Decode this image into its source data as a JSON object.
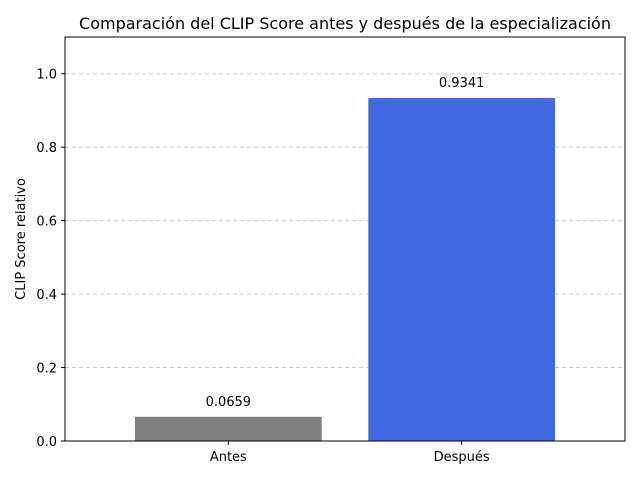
{
  "chart_data": {
    "type": "bar",
    "title": "Comparación del CLIP Score antes y después de la especialización",
    "xlabel": "",
    "ylabel": "CLIP Score relativo",
    "categories": [
      "Antes",
      "Después"
    ],
    "values": [
      0.0659,
      0.9341
    ],
    "value_labels": [
      "0.0659",
      "0.9341"
    ],
    "colors": [
      "#808080",
      "#4169e1"
    ],
    "ylim": [
      0,
      1.1
    ],
    "yticks": [
      0.0,
      0.2,
      0.4,
      0.6,
      0.8,
      1.0
    ],
    "ytick_labels": [
      "0.0",
      "0.2",
      "0.4",
      "0.6",
      "0.8",
      "1.0"
    ],
    "grid": {
      "axis": "y",
      "style": "dashed",
      "color": "#cccccc"
    },
    "legend": "none"
  }
}
